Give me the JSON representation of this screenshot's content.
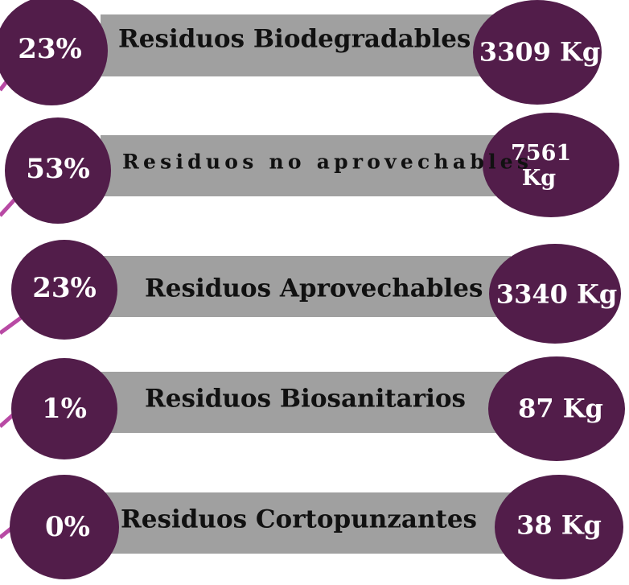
{
  "rows": [
    {
      "percent": "23%",
      "label": "Residuos Biodegradables",
      "amount": "3309 Kg"
    },
    {
      "percent": "53%",
      "label": "Residuos no aprovechables",
      "amount": "7561 Kg"
    },
    {
      "percent": "23%",
      "label": "Residuos Aprovechables",
      "amount": "3340 Kg"
    },
    {
      "percent": "1%",
      "label": "Residuos Biosanitarios",
      "amount": "87 Kg"
    },
    {
      "percent": "0%",
      "label": "Residuos Cortopunzantes",
      "amount": "38 Kg"
    }
  ]
}
